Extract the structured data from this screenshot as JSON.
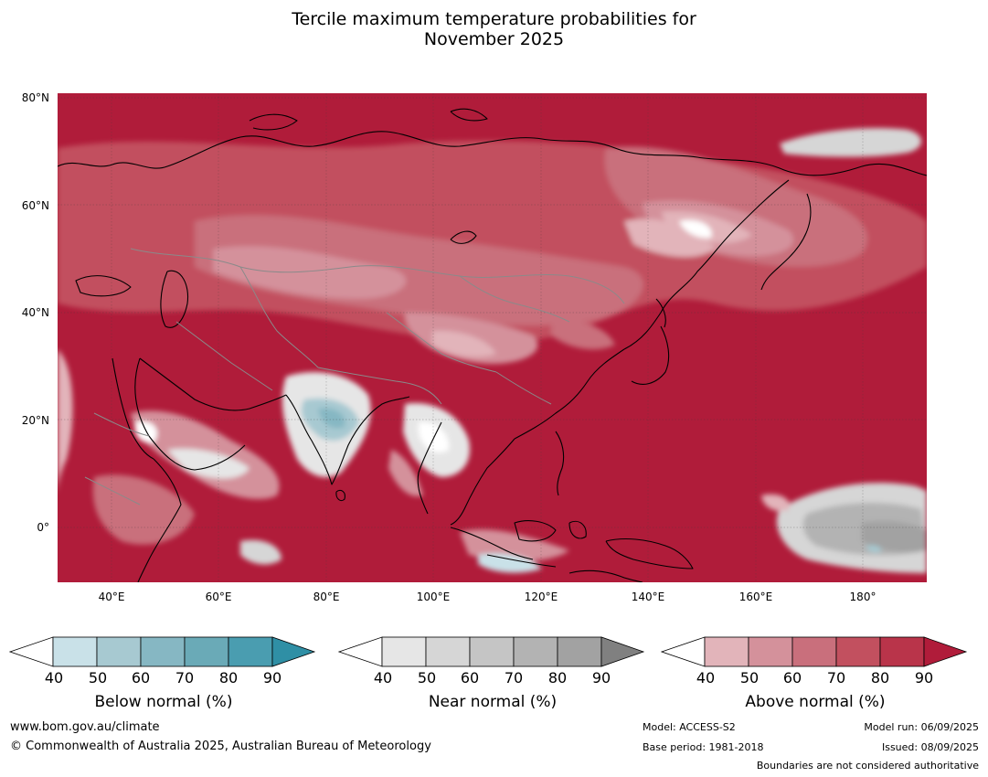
{
  "title": {
    "line1": "Tercile maximum temperature probabilities for",
    "line2": "November 2025"
  },
  "map": {
    "lat_labels": [
      "80°N",
      "60°N",
      "40°N",
      "20°N",
      "0°"
    ],
    "lon_labels": [
      "40°E",
      "60°E",
      "80°E",
      "100°E",
      "120°E",
      "140°E",
      "160°E",
      "180°"
    ],
    "extent": {
      "lon_min": 30,
      "lon_max": 192,
      "lat_min": -10,
      "lat_max": 81
    }
  },
  "colorbars": [
    {
      "name": "below",
      "label": "Below normal (%)",
      "ticks": [
        "40",
        "50",
        "60",
        "70",
        "80",
        "90"
      ],
      "colors": [
        "#ffffff",
        "#c9e1e8",
        "#a7c9d1",
        "#86b7c3",
        "#6aaab7",
        "#4a9db0",
        "#2f8fa5"
      ]
    },
    {
      "name": "near",
      "label": "Near normal (%)",
      "ticks": [
        "40",
        "50",
        "60",
        "70",
        "80",
        "90"
      ],
      "colors": [
        "#ffffff",
        "#e6e6e6",
        "#d6d6d6",
        "#c5c5c5",
        "#b3b3b3",
        "#a2a2a2",
        "#808080"
      ]
    },
    {
      "name": "above",
      "label": "Above normal (%)",
      "ticks": [
        "40",
        "50",
        "60",
        "70",
        "80",
        "90"
      ],
      "colors": [
        "#ffffff",
        "#e2b4ba",
        "#d4919b",
        "#c96f7c",
        "#c2505f",
        "#b9344a",
        "#b01c3a"
      ]
    }
  ],
  "footer": {
    "website": "www.bom.gov.au/climate",
    "copyright": "© Commonwealth of Australia 2025, Australian Bureau of Meteorology",
    "model": "Model: ACCESS-S2",
    "base_period": "Base period: 1981-2018",
    "model_run": "Model run: 06/09/2025",
    "issued": "Issued: 08/09/2025",
    "boundaries": "Boundaries are not considered authoritative"
  }
}
